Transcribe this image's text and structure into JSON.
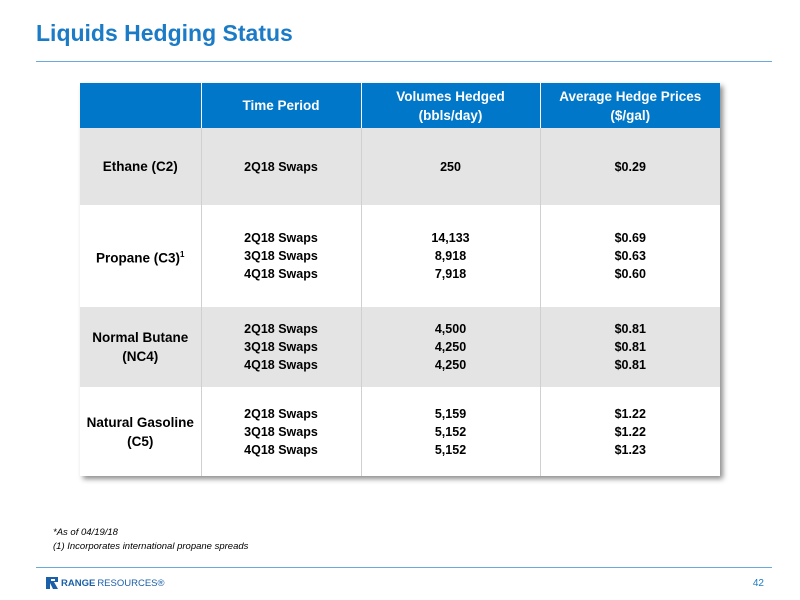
{
  "title": "Liquids Hedging Status",
  "table": {
    "headers": {
      "product": "",
      "time_period": "Time Period",
      "volumes_line1": "Volumes Hedged",
      "volumes_line2": "(bbls/day)",
      "prices_line1": "Average Hedge Prices",
      "prices_line2": "($/gal)"
    },
    "rows": [
      {
        "product_line1": "Ethane (C2)",
        "product_line2": "",
        "footnote_mark": "",
        "periods": [
          "2Q18 Swaps"
        ],
        "volumes": [
          "250"
        ],
        "prices": [
          "$0.29"
        ]
      },
      {
        "product_line1": "Propane (C3)",
        "product_line2": "",
        "footnote_mark": "1",
        "periods": [
          "2Q18 Swaps",
          "3Q18 Swaps",
          "4Q18 Swaps"
        ],
        "volumes": [
          "14,133",
          "8,918",
          "7,918"
        ],
        "prices": [
          "$0.69",
          "$0.63",
          "$0.60"
        ]
      },
      {
        "product_line1": "Normal Butane",
        "product_line2": "(NC4)",
        "footnote_mark": "",
        "periods": [
          "2Q18 Swaps",
          "3Q18 Swaps",
          "4Q18 Swaps"
        ],
        "volumes": [
          "4,500",
          "4,250",
          "4,250"
        ],
        "prices": [
          "$0.81",
          "$0.81",
          "$0.81"
        ]
      },
      {
        "product_line1": "Natural Gasoline",
        "product_line2": "(C5)",
        "footnote_mark": "",
        "periods": [
          "2Q18 Swaps",
          "3Q18 Swaps",
          "4Q18 Swaps"
        ],
        "volumes": [
          "5,159",
          "5,152",
          "5,152"
        ],
        "prices": [
          "$1.22",
          "$1.22",
          "$1.23"
        ]
      }
    ]
  },
  "footnotes": {
    "as_of": "*As of 04/19/18",
    "note1": "(1) Incorporates international propane spreads"
  },
  "footer": {
    "logo_bold": "RANGE",
    "logo_light": "RESOURCES®",
    "page_number": "42"
  },
  "colors": {
    "accent": "#1b7bc6",
    "header_bg": "#0077c8",
    "row_shade": "#e4e4e4"
  }
}
